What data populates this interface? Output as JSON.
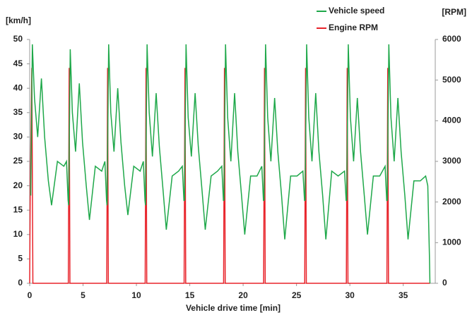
{
  "chart_data": {
    "type": "line",
    "xlabel": "Vehicle drive time [min]",
    "ylabel": "[km/h]",
    "y2label": "[RPM]",
    "xlim": [
      0,
      38
    ],
    "xticks": [
      0,
      5,
      10,
      15,
      20,
      25,
      30,
      35
    ],
    "ylim": [
      0,
      50
    ],
    "yticks": [
      0,
      5,
      10,
      15,
      20,
      25,
      30,
      35,
      40,
      45,
      50
    ],
    "y2lim": [
      0,
      6000
    ],
    "y2ticks": [
      0,
      1000,
      2000,
      3000,
      4000,
      5000,
      6000
    ],
    "grid": false,
    "legend": "top-right",
    "series": [
      {
        "name": "Vehicle speed",
        "color": "#1fa84a",
        "x": [
          0.1,
          0.25,
          0.45,
          0.75,
          1.1,
          1.4,
          1.75,
          2.05,
          2.6,
          3.2,
          3.45,
          3.6,
          3.65,
          3.8,
          4.0,
          4.3,
          4.65,
          4.95,
          5.3,
          5.6,
          6.15,
          6.75,
          7.05,
          7.2,
          7.25,
          7.4,
          7.6,
          7.9,
          8.25,
          8.55,
          8.9,
          9.2,
          9.75,
          10.35,
          10.65,
          10.8,
          10.85,
          11.0,
          11.2,
          11.5,
          11.85,
          12.15,
          12.5,
          12.8,
          13.35,
          13.95,
          14.3,
          14.45,
          14.5,
          14.65,
          14.85,
          15.15,
          15.5,
          15.8,
          16.15,
          16.45,
          17.0,
          17.6,
          18.0,
          18.15,
          18.2,
          18.35,
          18.55,
          18.85,
          19.2,
          19.5,
          19.85,
          20.15,
          20.7,
          21.3,
          21.75,
          21.9,
          21.95,
          22.1,
          22.3,
          22.6,
          22.95,
          23.25,
          23.6,
          23.9,
          24.45,
          25.05,
          25.6,
          25.75,
          25.8,
          25.95,
          26.15,
          26.45,
          26.8,
          27.1,
          27.45,
          27.75,
          28.3,
          28.9,
          29.5,
          29.65,
          29.7,
          29.85,
          30.05,
          30.35,
          30.7,
          31.0,
          31.35,
          31.65,
          32.2,
          32.8,
          33.3,
          33.45,
          33.5,
          33.65,
          33.85,
          34.15,
          34.5,
          34.8,
          35.15,
          35.45,
          36.0,
          36.6,
          37.1,
          37.3,
          37.45,
          37.5
        ],
        "values": [
          18,
          49,
          38,
          30,
          42,
          30,
          21,
          16,
          25,
          24,
          25,
          17,
          16,
          48,
          35,
          27,
          41,
          29,
          20,
          13,
          24,
          23,
          25,
          17,
          16,
          49,
          35,
          27,
          40,
          29,
          20,
          14,
          24,
          23,
          25,
          17,
          16,
          49,
          35,
          26,
          39,
          28,
          19,
          11,
          22,
          23,
          24,
          17,
          17,
          49,
          34,
          26,
          39,
          28,
          19,
          11,
          22,
          23,
          24,
          17,
          17,
          49,
          34,
          25,
          39,
          27,
          18,
          10,
          22,
          22,
          24,
          17,
          17,
          49,
          34,
          25,
          38,
          27,
          18,
          9,
          22,
          22,
          23,
          17,
          17,
          49,
          34,
          25,
          39,
          27,
          18,
          9,
          23,
          22,
          23,
          17,
          17,
          49,
          34,
          25,
          38,
          27,
          18,
          10,
          22,
          22,
          24,
          17,
          17,
          49,
          34,
          25,
          38,
          27,
          18,
          9,
          21,
          21,
          22,
          20,
          6,
          0
        ]
      },
      {
        "name": "Engine RPM",
        "color": "#e8232a",
        "axis": "y2",
        "x": [
          0,
          0.05,
          0.2,
          0.3,
          3.62,
          3.7,
          3.77,
          7.22,
          7.3,
          7.37,
          10.82,
          10.9,
          10.97,
          14.47,
          14.55,
          14.62,
          18.17,
          18.25,
          18.32,
          21.92,
          22.0,
          22.07,
          25.77,
          25.85,
          25.92,
          29.67,
          29.75,
          29.82,
          33.47,
          33.55,
          33.62,
          37.5
        ],
        "values": [
          0,
          2200,
          5300,
          0,
          0,
          5300,
          0,
          0,
          5300,
          0,
          0,
          5300,
          0,
          0,
          5300,
          0,
          0,
          5300,
          0,
          0,
          5300,
          0,
          0,
          5300,
          0,
          0,
          5300,
          0,
          0,
          5300,
          0,
          0
        ]
      }
    ]
  }
}
